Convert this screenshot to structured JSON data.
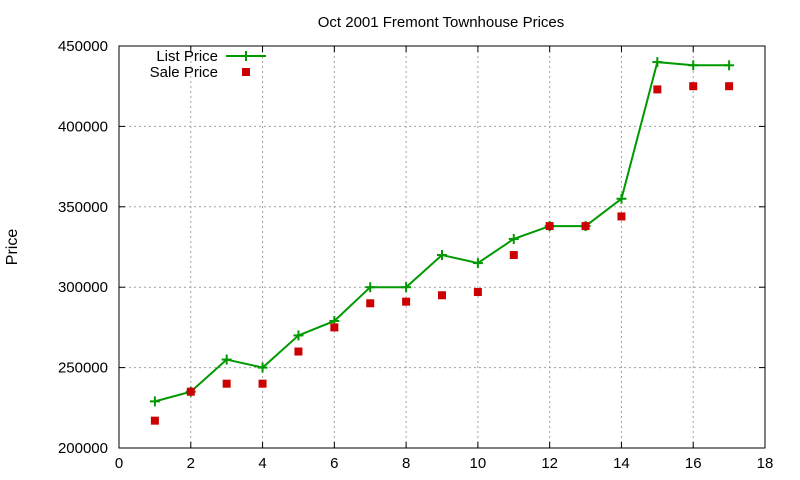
{
  "chart_data": {
    "type": "line",
    "title": "Oct 2001 Fremont Townhouse Prices",
    "xlabel": "",
    "ylabel": "Price",
    "xlim": [
      0,
      18
    ],
    "ylim": [
      200000,
      450000
    ],
    "x_ticks": [
      0,
      2,
      4,
      6,
      8,
      10,
      12,
      14,
      16,
      18
    ],
    "y_ticks": [
      200000,
      250000,
      300000,
      350000,
      400000,
      450000
    ],
    "grid": true,
    "legend_position": "top-left",
    "series": [
      {
        "name": "List Price",
        "style": "line-with-plus-markers",
        "color": "#009900",
        "x": [
          1,
          2,
          3,
          4,
          5,
          6,
          7,
          8,
          9,
          10,
          11,
          12,
          13,
          14,
          15,
          16,
          17
        ],
        "y": [
          229000,
          235000,
          255000,
          250000,
          270000,
          279000,
          300000,
          300000,
          320000,
          315000,
          330000,
          338000,
          338000,
          355000,
          440000,
          438000,
          438000
        ]
      },
      {
        "name": "Sale Price",
        "style": "square-markers",
        "color": "#cc0000",
        "x": [
          1,
          2,
          3,
          4,
          5,
          6,
          7,
          8,
          9,
          10,
          11,
          12,
          13,
          14,
          15,
          16,
          17
        ],
        "y": [
          217000,
          235000,
          240000,
          240000,
          260000,
          275000,
          290000,
          291000,
          295000,
          297000,
          320000,
          338000,
          338000,
          344000,
          423000,
          425000,
          425000
        ]
      }
    ]
  }
}
